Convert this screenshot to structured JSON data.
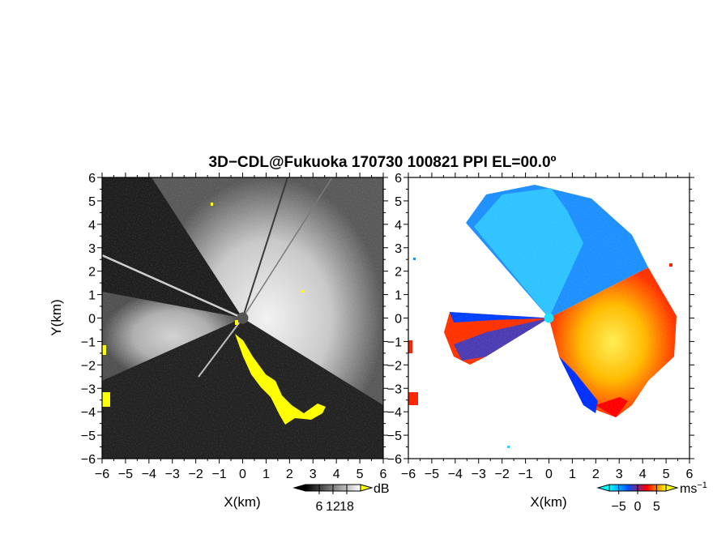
{
  "title": "3D−CDL@Fukuoka 170730 100821 PPI EL=00.0º",
  "chart_data": [
    {
      "type": "heatmap",
      "panel": "left",
      "xlabel": "X(km)",
      "ylabel": "Y(km)",
      "xlim": [
        -6,
        6
      ],
      "ylim": [
        -6,
        6
      ],
      "x_ticks": [
        -6,
        -5,
        -4,
        -3,
        -2,
        -1,
        0,
        1,
        2,
        3,
        4,
        5,
        6
      ],
      "y_ticks": [
        -6,
        -5,
        -4,
        -3,
        -2,
        -1,
        0,
        1,
        2,
        3,
        4,
        5,
        6
      ],
      "colorbar": {
        "unit": "dB",
        "ticks": [
          6,
          12,
          18
        ],
        "range": [
          0,
          24
        ],
        "colors": [
          "#000000",
          "#ffffff"
        ],
        "extend_low_color": "#000000",
        "extend_high_color": "#ffff00"
      },
      "background_color": "#2a2a2a",
      "clip_color": "#ffff00"
    },
    {
      "type": "heatmap",
      "panel": "right",
      "xlabel": "X(km)",
      "ylabel": "",
      "xlim": [
        -6,
        6
      ],
      "ylim": [
        -6,
        6
      ],
      "x_ticks": [
        -6,
        -5,
        -4,
        -3,
        -2,
        -1,
        0,
        1,
        2,
        3,
        4,
        5,
        6
      ],
      "y_ticks": [
        -6,
        -5,
        -4,
        -3,
        -2,
        -1,
        0,
        1,
        2,
        3,
        4,
        5,
        6
      ],
      "colorbar": {
        "unit": "ms",
        "unit_sup": "−1",
        "ticks": [
          -5,
          0,
          5
        ],
        "range": [
          -7.5,
          7.5
        ],
        "colors": [
          "#00ffff",
          "#0050ff",
          "#ff0000",
          "#ffff00"
        ],
        "extend_low_color": "#00ffff",
        "extend_high_color": "#ffff00"
      },
      "background_color": "#ffffff"
    }
  ]
}
